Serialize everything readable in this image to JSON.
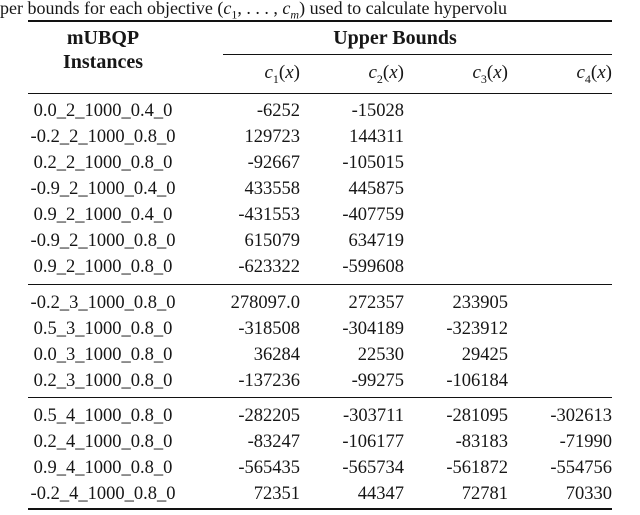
{
  "caption": {
    "pre": "per bounds for each objective (",
    "c_first": "c",
    "sub_first": "1",
    "separator": ", . . . , ",
    "c_last": "c",
    "sub_last": "m",
    "post": ") used to calculate hypervolu"
  },
  "table": {
    "row_group_header_line1": "mUBQP",
    "row_group_header_line2": "Instances",
    "col_group_header": "Upper Bounds",
    "objective_columns": [
      {
        "base": "c",
        "sub": "1",
        "lparen": "(",
        "var": "x",
        "rparen": ")"
      },
      {
        "base": "c",
        "sub": "2",
        "lparen": "(",
        "var": "x",
        "rparen": ")"
      },
      {
        "base": "c",
        "sub": "3",
        "lparen": "(",
        "var": "x",
        "rparen": ")"
      },
      {
        "base": "c",
        "sub": "4",
        "lparen": "(",
        "var": "x",
        "rparen": ")"
      }
    ],
    "blocks": [
      {
        "rows": [
          {
            "name": "0.0_2_1000_0.4_0",
            "values": [
              "-6252",
              "-15028",
              "",
              ""
            ]
          },
          {
            "name": "-0.2_2_1000_0.8_0",
            "values": [
              "129723",
              "144311",
              "",
              ""
            ]
          },
          {
            "name": "0.2_2_1000_0.8_0",
            "values": [
              "-92667",
              "-105015",
              "",
              ""
            ]
          },
          {
            "name": "-0.9_2_1000_0.4_0",
            "values": [
              "433558",
              "445875",
              "",
              ""
            ]
          },
          {
            "name": "0.9_2_1000_0.4_0",
            "values": [
              "-431553",
              "-407759",
              "",
              ""
            ]
          },
          {
            "name": "-0.9_2_1000_0.8_0",
            "values": [
              "615079",
              "634719",
              "",
              ""
            ]
          },
          {
            "name": "0.9_2_1000_0.8_0",
            "values": [
              "-623322",
              "-599608",
              "",
              ""
            ]
          }
        ]
      },
      {
        "rows": [
          {
            "name": "-0.2_3_1000_0.8_0",
            "values": [
              "278097.0",
              "272357",
              "233905",
              ""
            ]
          },
          {
            "name": "0.5_3_1000_0.8_0",
            "values": [
              "-318508",
              "-304189",
              "-323912",
              ""
            ]
          },
          {
            "name": "0.0_3_1000_0.8_0",
            "values": [
              "36284",
              "22530",
              "29425",
              ""
            ]
          },
          {
            "name": "0.2_3_1000_0.8_0",
            "values": [
              "-137236",
              "-99275",
              "-106184",
              ""
            ]
          }
        ]
      },
      {
        "rows": [
          {
            "name": "0.5_4_1000_0.8_0",
            "values": [
              "-282205",
              "-303711",
              "-281095",
              "-302613"
            ]
          },
          {
            "name": "0.2_4_1000_0.8_0",
            "values": [
              "-83247",
              "-106177",
              "-83183",
              "-71990"
            ]
          },
          {
            "name": "0.9_4_1000_0.8_0",
            "values": [
              "-565435",
              "-565734",
              "-561872",
              "-554756"
            ]
          },
          {
            "name": "-0.2_4_1000_0.8_0",
            "values": [
              "72351",
              "44347",
              "72781",
              "70330"
            ]
          }
        ]
      }
    ]
  }
}
